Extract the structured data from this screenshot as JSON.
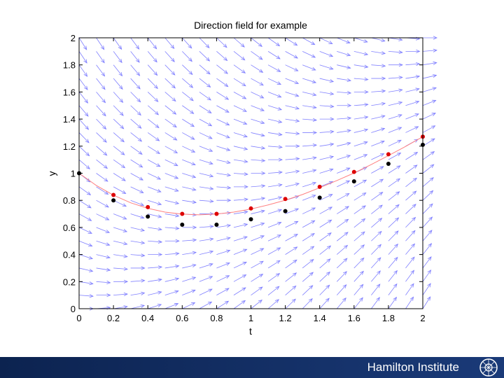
{
  "chart_data": {
    "type": "scatter",
    "title": "Direction field for example",
    "xlabel": "t",
    "ylabel": "y",
    "xlim": [
      0,
      2
    ],
    "ylim": [
      0,
      2
    ],
    "x_ticks": [
      "0",
      "0.2",
      "0.4",
      "0.6",
      "0.8",
      "1",
      "1.2",
      "1.4",
      "1.6",
      "1.8",
      "2"
    ],
    "y_ticks": [
      "0",
      "0.2",
      "0.4",
      "0.6",
      "0.8",
      "1",
      "1.2",
      "1.4",
      "1.6",
      "1.8",
      "2"
    ],
    "direction_field": {
      "equation": "dy/dt = t - y",
      "t_step": 0.1,
      "y_step": 0.1,
      "color": "#8080ff"
    },
    "series": [
      {
        "kind": "line",
        "color": "#ff8080",
        "x": [
          0,
          0.1,
          0.2,
          0.3,
          0.4,
          0.5,
          0.6,
          0.7,
          0.8,
          0.9,
          1.0,
          1.1,
          1.2,
          1.3,
          1.4,
          1.5,
          1.6,
          1.7,
          1.8,
          1.9,
          2.0
        ],
        "y": [
          1.0,
          0.91,
          0.838,
          0.782,
          0.741,
          0.713,
          0.698,
          0.693,
          0.699,
          0.713,
          0.736,
          0.766,
          0.801,
          0.843,
          0.893,
          0.946,
          1.002,
          1.064,
          1.13,
          1.198,
          1.27
        ]
      },
      {
        "kind": "markers",
        "color": "#dd0000",
        "x": [
          0.2,
          0.4,
          0.6,
          0.8,
          1.0,
          1.2,
          1.4,
          1.6,
          1.8,
          2.0
        ],
        "y": [
          0.84,
          0.75,
          0.7,
          0.7,
          0.74,
          0.81,
          0.9,
          1.01,
          1.14,
          1.27
        ]
      },
      {
        "kind": "markers",
        "color": "#000000",
        "x": [
          0,
          0.2,
          0.4,
          0.6,
          0.8,
          1.0,
          1.2,
          1.4,
          1.6,
          1.8,
          2.0
        ],
        "y": [
          1.0,
          0.8,
          0.68,
          0.62,
          0.62,
          0.66,
          0.72,
          0.82,
          0.94,
          1.07,
          1.21
        ]
      }
    ]
  },
  "footer": {
    "institute": "Hamilton Institute"
  },
  "colors": {
    "footer_bg": "#13306a",
    "axis": "#000000"
  }
}
